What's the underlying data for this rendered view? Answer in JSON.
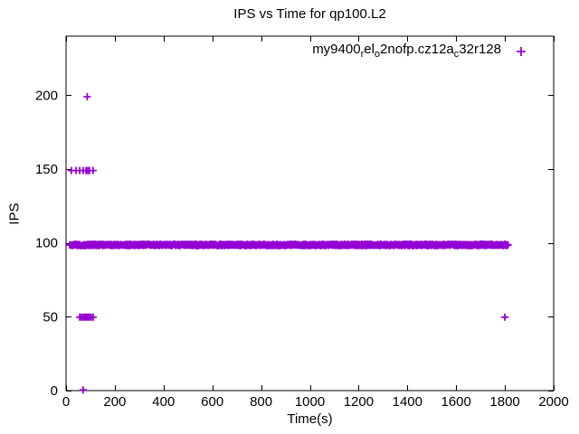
{
  "title": "IPS vs Time for qp100.L2",
  "axes": {
    "x": {
      "label": "Time(s)",
      "min": 0,
      "max": 2000,
      "ticks": [
        0,
        200,
        400,
        600,
        800,
        1000,
        1200,
        1400,
        1600,
        1800,
        2000
      ]
    },
    "y": {
      "label": "IPS",
      "min": 0,
      "max": 240,
      "ticks": [
        0,
        50,
        100,
        150,
        200
      ]
    }
  },
  "legend": {
    "marker": "plus",
    "marker_color": "#9400d3",
    "series_label_plain": "my9400_rel_o2nofp.cz12a_c32r128",
    "segments": [
      {
        "text": "my9400",
        "sub": false
      },
      {
        "text": "r",
        "sub": true
      },
      {
        "text": "el",
        "sub": false
      },
      {
        "text": "o",
        "sub": true
      },
      {
        "text": "2nofp.cz12a",
        "sub": false
      },
      {
        "text": "c",
        "sub": true
      },
      {
        "text": "32r128",
        "sub": false
      }
    ]
  },
  "chart_data": {
    "type": "scatter",
    "marker": "plus",
    "color": "#9400d3",
    "title": "IPS vs Time for qp100.L2",
    "xlabel": "Time(s)",
    "ylabel": "IPS",
    "xlim": [
      0,
      2000
    ],
    "ylim": [
      0,
      240
    ],
    "grid": false,
    "legend_position": "top-right-inside",
    "series": [
      {
        "name": "my9400_rel_o2nofp.cz12a_c32r128",
        "dense_band": {
          "description": "continuous thick band of overlapping + markers, approx one sample per second",
          "x_start": 15,
          "x_end": 1813,
          "y_center": 98.6,
          "y_min": 98.1,
          "y_max": 99.2
        },
        "outlier_clusters": [
          {
            "y": 199,
            "x": [
              87
            ]
          },
          {
            "y": 149,
            "x": [
              22,
              41,
              56,
              70,
              82,
              89,
              96,
              111
            ]
          },
          {
            "y": 49.7,
            "x": [
              56,
              63,
              70,
              77,
              84,
              90,
              96,
              103,
              111,
              1800
            ]
          },
          {
            "y": 0.4,
            "x": [
              70
            ]
          }
        ]
      }
    ]
  }
}
